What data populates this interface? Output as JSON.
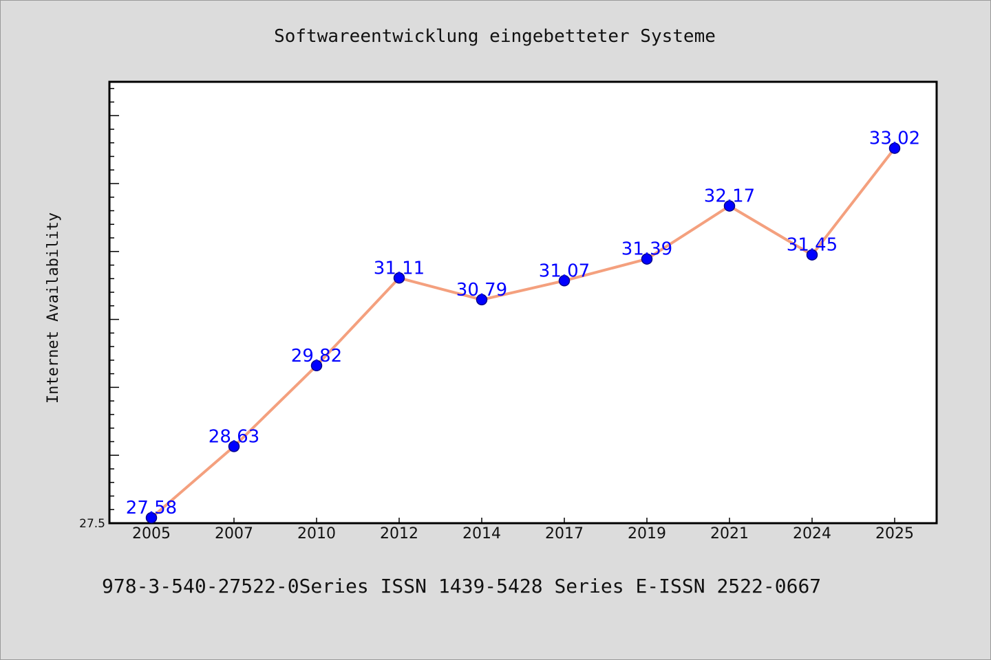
{
  "chart_data": {
    "type": "line",
    "title": "Softwareentwicklung eingebetteter Systeme",
    "ylabel": "Internet Availability",
    "xlabel": "",
    "categories": [
      "2005",
      "2007",
      "2010",
      "2012",
      "2014",
      "2017",
      "2019",
      "2021",
      "2024",
      "2025"
    ],
    "series": [
      {
        "values": [
          27.58,
          28.63,
          29.82,
          31.11,
          30.79,
          31.07,
          31.39,
          32.17,
          31.45,
          33.02
        ],
        "labels": [
          "27.58",
          "28.63",
          "29.82",
          "31.11",
          "30.79",
          "31.07",
          "31.39",
          "32.17",
          "31.45",
          "33.02"
        ]
      }
    ],
    "ylim": [
      27.5,
      34.0
    ],
    "ytick_labels": [
      "27.5"
    ],
    "grid": false,
    "legend": "none",
    "colors": {
      "line": "#f4a07e",
      "marker": "#0000ff",
      "marker_edge": "#00008b",
      "data_label": "#0000ff",
      "background": "#dcdcdc",
      "plot_background": "#ffffff"
    }
  },
  "footer": "978-3-540-27522-0Series ISSN 1439-5428 Series E-ISSN 2522-0667"
}
